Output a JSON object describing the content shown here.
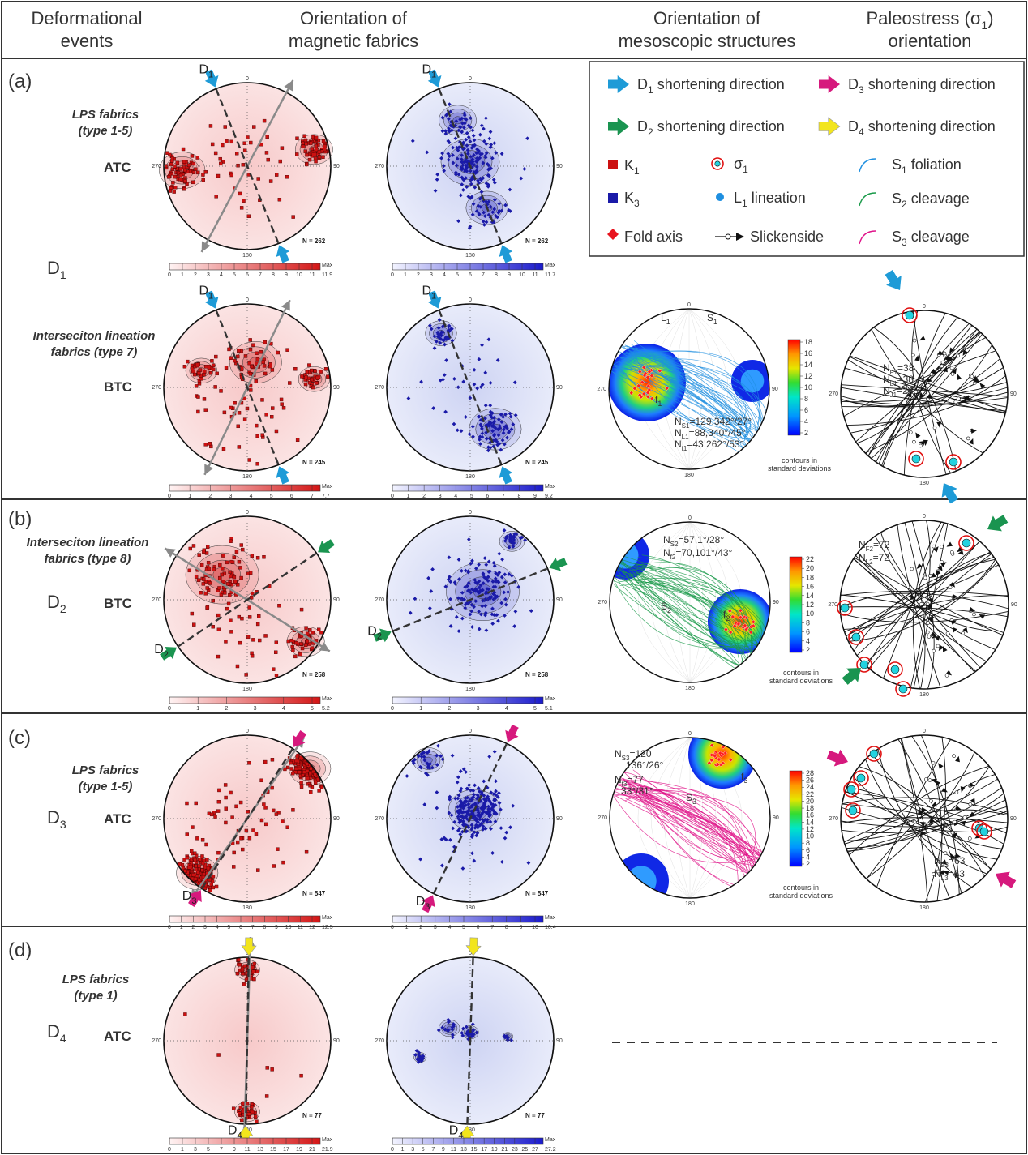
{
  "headers": {
    "col1": [
      "Deformational",
      "events"
    ],
    "col2": [
      "Orientation of",
      "magnetic fabrics"
    ],
    "col3": [
      "Orientation of",
      "mesoscopic structures"
    ],
    "col4": [
      "Paleostress (σ",
      "1",
      ")",
      "orientation"
    ]
  },
  "rows": [
    {
      "id": "a",
      "label": "(a)"
    },
    {
      "id": "b",
      "label": "(b)"
    },
    {
      "id": "c",
      "label": "(c)"
    },
    {
      "id": "d",
      "label": "(d)"
    }
  ],
  "events": {
    "d1": [
      "D",
      "1"
    ],
    "d2": [
      "D",
      "2"
    ],
    "d3": [
      "D",
      "3"
    ],
    "d4": [
      "D",
      "4"
    ]
  },
  "fabric_labels": {
    "a1": [
      "LPS fabrics",
      "(type 1-5)"
    ],
    "a2": [
      "Interseciton lineation",
      "fabrics (type 7)"
    ],
    "b": [
      "Interseciton lineation",
      "fabrics (type 8)"
    ],
    "c": [
      "LPS fabrics",
      "(type 1-5)"
    ],
    "d": [
      "LPS fabrics",
      "(type 1)"
    ]
  },
  "abbrev": {
    "a1": "ATC",
    "a2": "BTC",
    "b": "BTC",
    "c": "ATC",
    "d": "ATC"
  },
  "stereonet_ticks": {
    "n": "0",
    "e": "90",
    "s": "180",
    "w": "270"
  },
  "counts": {
    "a1": "N = 262",
    "a2": "N = 245",
    "b": "N = 258",
    "c": "N = 547",
    "d": "N = 77"
  },
  "colorbars": {
    "max_label": "Max",
    "a1_k1": {
      "ticks": [
        "0",
        "1",
        "2",
        "3",
        "4",
        "5",
        "6",
        "7",
        "8",
        "9",
        "10",
        "11"
      ],
      "max": "11.9"
    },
    "a1_k3": {
      "ticks": [
        "0",
        "1",
        "2",
        "3",
        "4",
        "5",
        "6",
        "7",
        "8",
        "9",
        "10",
        "11"
      ],
      "max": "11.7"
    },
    "a2_k1": {
      "ticks": [
        "0",
        "1",
        "2",
        "3",
        "4",
        "5",
        "6",
        "7"
      ],
      "max": "7.7"
    },
    "a2_k3": {
      "ticks": [
        "0",
        "1",
        "2",
        "3",
        "4",
        "5",
        "6",
        "7",
        "8",
        "9"
      ],
      "max": "9.2"
    },
    "b_k1": {
      "ticks": [
        "0",
        "1",
        "2",
        "3",
        "4",
        "5"
      ],
      "max": "5.2"
    },
    "b_k3": {
      "ticks": [
        "0",
        "1",
        "2",
        "3",
        "4",
        "5"
      ],
      "max": "5.1"
    },
    "c_k1": {
      "ticks": [
        "0",
        "1",
        "2",
        "3",
        "4",
        "5",
        "6",
        "7",
        "8",
        "9",
        "10",
        "11",
        "12"
      ],
      "max": "12.5"
    },
    "c_k3": {
      "ticks": [
        "0",
        "1",
        "2",
        "3",
        "4",
        "5",
        "6",
        "7",
        "8",
        "9",
        "10"
      ],
      "max": "10.4"
    },
    "d_k1": {
      "ticks": [
        "0",
        "1",
        "3",
        "5",
        "7",
        "9",
        "11",
        "13",
        "15",
        "17",
        "19",
        "21"
      ],
      "max": "21.9"
    },
    "d_k3": {
      "ticks": [
        "0",
        "1",
        "3",
        "5",
        "7",
        "9",
        "11",
        "13",
        "15",
        "17",
        "19",
        "21",
        "23",
        "25",
        "27"
      ],
      "max": "27.2"
    }
  },
  "legend": {
    "d1": [
      "D",
      "1",
      " shortening direction"
    ],
    "d2": [
      "D",
      "2",
      " shortening direction"
    ],
    "d3": [
      "D",
      "3",
      " shortening direction"
    ],
    "d4": [
      "D",
      "4",
      " shortening direction"
    ],
    "k1": [
      "K",
      "1"
    ],
    "k3": [
      "K",
      "3"
    ],
    "sigma": [
      "σ",
      "1"
    ],
    "l1": [
      "L",
      "1",
      " lineation"
    ],
    "fold": "Fold axis",
    "slick": "Slickenside",
    "s1": [
      "S",
      "1",
      " foliation"
    ],
    "s2": [
      "S",
      "2",
      " cleavage"
    ],
    "s3": [
      "S",
      "3",
      " cleavage"
    ]
  },
  "meso": {
    "a": {
      "l1": [
        "L",
        "1"
      ],
      "s1": [
        "S",
        "1"
      ],
      "f": [
        "f",
        "1"
      ],
      "stats": [
        "N",
        "S1",
        "=129,342°/27°",
        "N",
        "L1",
        "=88,340°/45°",
        "N",
        "f1",
        "=43,262°/53°"
      ],
      "cb": [
        "2",
        "4",
        "6",
        "8",
        "10",
        "12",
        "14",
        "16",
        "18"
      ]
    },
    "b": {
      "s2": [
        "S",
        "2"
      ],
      "f": [
        "f",
        "2"
      ],
      "stats": [
        "N",
        "S2",
        "=57,1°/28°",
        "N",
        "f2",
        "=70,101°/43°"
      ],
      "cb": [
        "2",
        "4",
        "6",
        "8",
        "10",
        "12",
        "14",
        "16",
        "18",
        "20",
        "22"
      ]
    },
    "c": {
      "s3": [
        "S",
        "3"
      ],
      "f": [
        "f",
        "3"
      ],
      "stats": [
        "N",
        "S3",
        "=120",
        "136°/26°",
        "N",
        "f3",
        "=77",
        "33°/31°"
      ],
      "cb": [
        "2",
        "4",
        "6",
        "8",
        "10",
        "12",
        "14",
        "16",
        "18",
        "20",
        "22",
        "24",
        "26",
        "28"
      ]
    },
    "cb_caption": [
      "contours in",
      "standard deviations"
    ]
  },
  "paleo": {
    "a": [
      "N",
      "F1",
      "=38",
      "N",
      "L1",
      "=38",
      "N",
      "J1",
      "=24"
    ],
    "b": [
      "N",
      "F2",
      "=72",
      "N",
      "L2",
      "=72"
    ],
    "c": [
      "N",
      "F3",
      "=63",
      "N",
      "L3",
      "=63"
    ]
  },
  "colors": {
    "k1": "#cc1111",
    "k3": "#1a1aa8",
    "d1_arrow": "#1e9bd7",
    "d2_arrow": "#1a9450",
    "d3_arrow": "#d6197d",
    "d4_arrow": "#f2e51d",
    "s1": "#1e8fe0",
    "s2": "#1a9a4a",
    "s3": "#e0148a"
  }
}
